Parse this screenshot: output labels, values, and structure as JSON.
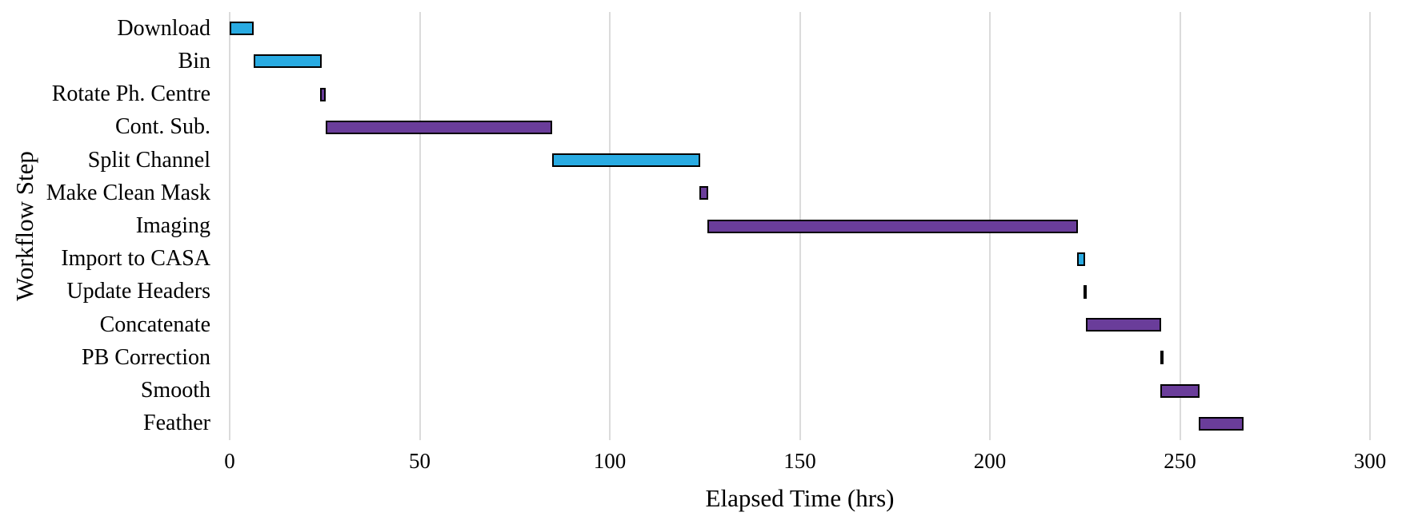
{
  "figure": {
    "background": "#FFFFFF"
  },
  "chart_data": {
    "type": "bar",
    "subtype": "gantt-horizontal",
    "title": "",
    "xlabel": "Elapsed Time (hrs)",
    "ylabel": "Workflow Step",
    "xlim": [
      0,
      300
    ],
    "x_ticks": [
      0,
      50,
      100,
      150,
      200,
      250,
      300
    ],
    "grid": "vertical-gridlines-only",
    "legend": "none",
    "categories": [
      "Download",
      "Bin",
      "Rotate Ph. Centre",
      "Cont. Sub.",
      "Split Channel",
      "Make Clean Mask",
      "Imaging",
      "Import to CASA",
      "Update Headers",
      "Concatenate",
      "PB Correction",
      "Smooth",
      "Feather"
    ],
    "bars": [
      {
        "step": "Download",
        "start_hr": 0,
        "end_hr": 6.3,
        "duration_hr": 6.3,
        "color_key": "cyan"
      },
      {
        "step": "Bin",
        "start_hr": 6.3,
        "end_hr": 24.2,
        "duration_hr": 17.9,
        "color_key": "cyan"
      },
      {
        "step": "Rotate Ph. Centre",
        "start_hr": 23.8,
        "end_hr": 25.3,
        "duration_hr": 1.5,
        "color_key": "purple"
      },
      {
        "step": "Cont. Sub.",
        "start_hr": 25.3,
        "end_hr": 84.8,
        "duration_hr": 59.5,
        "color_key": "purple"
      },
      {
        "step": "Split Channel",
        "start_hr": 84.8,
        "end_hr": 123.8,
        "duration_hr": 39.0,
        "color_key": "cyan"
      },
      {
        "step": "Make Clean Mask",
        "start_hr": 123.6,
        "end_hr": 125.9,
        "duration_hr": 2.3,
        "color_key": "purple"
      },
      {
        "step": "Imaging",
        "start_hr": 125.7,
        "end_hr": 223.2,
        "duration_hr": 97.5,
        "color_key": "purple"
      },
      {
        "step": "Import to CASA",
        "start_hr": 222.9,
        "end_hr": 225.1,
        "duration_hr": 2.2,
        "color_key": "cyan"
      },
      {
        "step": "Update Headers",
        "start_hr": 224.6,
        "end_hr": 225.5,
        "duration_hr": 0.9,
        "color_key": "purple"
      },
      {
        "step": "Concatenate",
        "start_hr": 225.3,
        "end_hr": 245.1,
        "duration_hr": 19.8,
        "color_key": "purple"
      },
      {
        "step": "PB Correction",
        "start_hr": 244.8,
        "end_hr": 245.7,
        "duration_hr": 0.9,
        "color_key": "purple"
      },
      {
        "step": "Smooth",
        "start_hr": 244.8,
        "end_hr": 255.2,
        "duration_hr": 10.4,
        "color_key": "purple"
      },
      {
        "step": "Feather",
        "start_hr": 254.9,
        "end_hr": 266.7,
        "duration_hr": 11.8,
        "color_key": "purple"
      }
    ],
    "colors": {
      "cyan": "#29ABE2",
      "purple": "#6A3D9A",
      "bar_border": "#000000",
      "gridline": "#DBDBDB",
      "text": "#000000"
    }
  }
}
